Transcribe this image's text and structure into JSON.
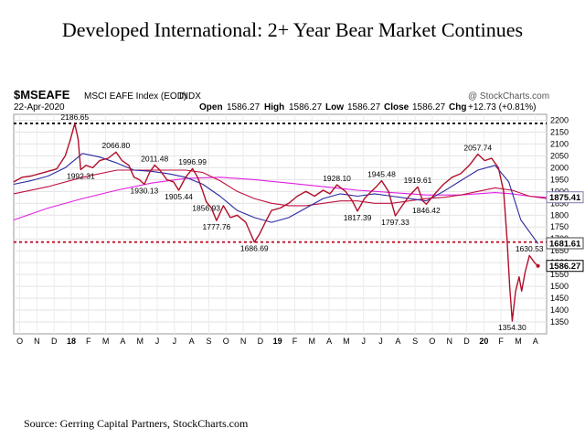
{
  "slide_title": "Developed International:  2+ Year Bear Market Continues",
  "source": "Source: Gerring Capital Partners, StockCharts.com",
  "chart_data": {
    "type": "line",
    "ticker": "$MSEAFE",
    "index_name": "MSCI EAFE Index (EOD)",
    "exchange": "INDX",
    "date": "22-Apr-2020",
    "watermark": "@ StockCharts.com",
    "quote": {
      "open_label": "Open",
      "open": "1586.27",
      "high_label": "High",
      "high": "1586.27",
      "low_label": "Low",
      "low": "1586.27",
      "close_label": "Close",
      "close": "1586.27",
      "chg_label": "Chg",
      "chg": "+12.73 (+0.81%)"
    },
    "x_labels": [
      {
        "t": 0,
        "label": "O",
        "bold": false
      },
      {
        "t": 1,
        "label": "N",
        "bold": false
      },
      {
        "t": 2,
        "label": "D",
        "bold": false
      },
      {
        "t": 3,
        "label": "18",
        "bold": true
      },
      {
        "t": 4,
        "label": "F",
        "bold": false
      },
      {
        "t": 5,
        "label": "M",
        "bold": false
      },
      {
        "t": 6,
        "label": "A",
        "bold": false
      },
      {
        "t": 7,
        "label": "M",
        "bold": false
      },
      {
        "t": 8,
        "label": "J",
        "bold": false
      },
      {
        "t": 9,
        "label": "J",
        "bold": false
      },
      {
        "t": 10,
        "label": "A",
        "bold": false
      },
      {
        "t": 11,
        "label": "S",
        "bold": false
      },
      {
        "t": 12,
        "label": "O",
        "bold": false
      },
      {
        "t": 13,
        "label": "N",
        "bold": false
      },
      {
        "t": 14,
        "label": "D",
        "bold": false
      },
      {
        "t": 15,
        "label": "19",
        "bold": true
      },
      {
        "t": 16,
        "label": "F",
        "bold": false
      },
      {
        "t": 17,
        "label": "M",
        "bold": false
      },
      {
        "t": 18,
        "label": "A",
        "bold": false
      },
      {
        "t": 19,
        "label": "M",
        "bold": false
      },
      {
        "t": 20,
        "label": "J",
        "bold": false
      },
      {
        "t": 21,
        "label": "J",
        "bold": false
      },
      {
        "t": 22,
        "label": "A",
        "bold": false
      },
      {
        "t": 23,
        "label": "S",
        "bold": false
      },
      {
        "t": 24,
        "label": "O",
        "bold": false
      },
      {
        "t": 25,
        "label": "N",
        "bold": false
      },
      {
        "t": 26,
        "label": "D",
        "bold": false
      },
      {
        "t": 27,
        "label": "20",
        "bold": true
      },
      {
        "t": 28,
        "label": "F",
        "bold": false
      },
      {
        "t": 29,
        "label": "M",
        "bold": false
      },
      {
        "t": 30,
        "label": "A",
        "bold": false
      }
    ],
    "y_ticks": [
      1350,
      1400,
      1450,
      1500,
      1550,
      1600,
      1650,
      1700,
      1750,
      1800,
      1850,
      1900,
      1950,
      2000,
      2050,
      2100,
      2150,
      2200
    ],
    "ylim": [
      1300,
      2225
    ],
    "xlim": [
      0,
      31
    ],
    "reference_lines": [
      2186.65,
      1686.69
    ],
    "value_boxes": [
      {
        "label": "1875.41",
        "y": 1875.41,
        "color": "#7a7ab0"
      },
      {
        "label": "1681.61",
        "y": 1681.61,
        "color": "#444444"
      },
      {
        "label": "1586.27",
        "y": 1586.27,
        "color": "#000000"
      }
    ],
    "annotations": [
      {
        "label": "2186.65",
        "t": 3.55,
        "v": 2186.65,
        "pos": "above"
      },
      {
        "label": "1992.31",
        "t": 3.9,
        "v": 1992.31,
        "pos": "below"
      },
      {
        "label": "2066.80",
        "t": 5.95,
        "v": 2066.8,
        "pos": "above"
      },
      {
        "label": "2011.48",
        "t": 8.2,
        "v": 2011.48,
        "pos": "above"
      },
      {
        "label": "1930.13",
        "t": 7.6,
        "v": 1930.13,
        "pos": "below"
      },
      {
        "label": "1996.99",
        "t": 10.4,
        "v": 1996.99,
        "pos": "above"
      },
      {
        "label": "1905.44",
        "t": 9.6,
        "v": 1905.44,
        "pos": "below"
      },
      {
        "label": "1856.93",
        "t": 11.2,
        "v": 1856.93,
        "pos": "below"
      },
      {
        "label": "1777.76",
        "t": 11.8,
        "v": 1777.76,
        "pos": "below"
      },
      {
        "label": "1686.69",
        "t": 14.0,
        "v": 1686.69,
        "pos": "below"
      },
      {
        "label": "1928.10",
        "t": 18.8,
        "v": 1928.1,
        "pos": "above"
      },
      {
        "label": "1945.48",
        "t": 21.4,
        "v": 1945.48,
        "pos": "above"
      },
      {
        "label": "1919.61",
        "t": 23.5,
        "v": 1919.61,
        "pos": "above"
      },
      {
        "label": "1817.39",
        "t": 20.0,
        "v": 1817.39,
        "pos": "below"
      },
      {
        "label": "1797.33",
        "t": 22.2,
        "v": 1797.33,
        "pos": "below"
      },
      {
        "label": "1846.42",
        "t": 24.0,
        "v": 1846.42,
        "pos": "below"
      },
      {
        "label": "2057.74",
        "t": 27.0,
        "v": 2057.74,
        "pos": "above"
      },
      {
        "label": "1630.53",
        "t": 30.0,
        "v": 1630.53,
        "pos": "above"
      },
      {
        "label": "1354.30",
        "t": 29.0,
        "v": 1354.3,
        "pos": "below"
      }
    ],
    "series": [
      {
        "name": "Price",
        "color": "#b0102a",
        "width": 1.4,
        "points": [
          [
            0,
            1940
          ],
          [
            0.5,
            1960
          ],
          [
            1,
            1965
          ],
          [
            1.5,
            1975
          ],
          [
            2,
            1985
          ],
          [
            2.5,
            1995
          ],
          [
            3,
            2050
          ],
          [
            3.3,
            2120
          ],
          [
            3.55,
            2186
          ],
          [
            3.75,
            2120
          ],
          [
            3.9,
            1992
          ],
          [
            4.2,
            2010
          ],
          [
            4.6,
            2000
          ],
          [
            5,
            2030
          ],
          [
            5.5,
            2040
          ],
          [
            5.95,
            2066
          ],
          [
            6.3,
            2030
          ],
          [
            6.7,
            2010
          ],
          [
            7,
            1960
          ],
          [
            7.3,
            1950
          ],
          [
            7.6,
            1930
          ],
          [
            7.9,
            1980
          ],
          [
            8.2,
            2011
          ],
          [
            8.5,
            1990
          ],
          [
            8.9,
            1950
          ],
          [
            9.3,
            1940
          ],
          [
            9.6,
            1905
          ],
          [
            10,
            1960
          ],
          [
            10.4,
            1996
          ],
          [
            10.7,
            1960
          ],
          [
            11,
            1900
          ],
          [
            11.2,
            1857
          ],
          [
            11.5,
            1830
          ],
          [
            11.8,
            1777
          ],
          [
            12.2,
            1840
          ],
          [
            12.6,
            1790
          ],
          [
            13,
            1800
          ],
          [
            13.5,
            1770
          ],
          [
            14.0,
            1686
          ],
          [
            14.3,
            1720
          ],
          [
            14.7,
            1780
          ],
          [
            15,
            1820
          ],
          [
            15.5,
            1830
          ],
          [
            16,
            1850
          ],
          [
            16.5,
            1880
          ],
          [
            17,
            1900
          ],
          [
            17.5,
            1880
          ],
          [
            18,
            1905
          ],
          [
            18.4,
            1890
          ],
          [
            18.8,
            1928
          ],
          [
            19.3,
            1900
          ],
          [
            19.7,
            1860
          ],
          [
            20,
            1817
          ],
          [
            20.4,
            1870
          ],
          [
            20.8,
            1900
          ],
          [
            21.1,
            1920
          ],
          [
            21.4,
            1945
          ],
          [
            21.8,
            1900
          ],
          [
            22.2,
            1797
          ],
          [
            22.6,
            1840
          ],
          [
            23,
            1880
          ],
          [
            23.5,
            1919
          ],
          [
            23.8,
            1860
          ],
          [
            24,
            1846
          ],
          [
            24.5,
            1890
          ],
          [
            25,
            1930
          ],
          [
            25.5,
            1960
          ],
          [
            26,
            1975
          ],
          [
            26.5,
            2010
          ],
          [
            27,
            2057
          ],
          [
            27.4,
            2030
          ],
          [
            27.8,
            2040
          ],
          [
            28.2,
            2000
          ],
          [
            28.5,
            1900
          ],
          [
            28.7,
            1700
          ],
          [
            28.85,
            1500
          ],
          [
            29,
            1354
          ],
          [
            29.2,
            1480
          ],
          [
            29.4,
            1540
          ],
          [
            29.55,
            1480
          ],
          [
            29.75,
            1560
          ],
          [
            30,
            1630
          ],
          [
            30.3,
            1600
          ],
          [
            30.5,
            1586
          ]
        ]
      },
      {
        "name": "MA50",
        "color": "#2a2aa0",
        "width": 1.1,
        "points": [
          [
            0,
            1930
          ],
          [
            1,
            1945
          ],
          [
            2,
            1965
          ],
          [
            3,
            2000
          ],
          [
            4,
            2060
          ],
          [
            5,
            2045
          ],
          [
            6,
            2020
          ],
          [
            7,
            1990
          ],
          [
            8,
            1985
          ],
          [
            9,
            1975
          ],
          [
            10,
            1960
          ],
          [
            11,
            1930
          ],
          [
            12,
            1880
          ],
          [
            13,
            1820
          ],
          [
            14,
            1790
          ],
          [
            15,
            1770
          ],
          [
            16,
            1790
          ],
          [
            17,
            1830
          ],
          [
            18,
            1870
          ],
          [
            19,
            1890
          ],
          [
            20,
            1880
          ],
          [
            21,
            1890
          ],
          [
            22,
            1880
          ],
          [
            23,
            1870
          ],
          [
            24,
            1860
          ],
          [
            25,
            1900
          ],
          [
            26,
            1945
          ],
          [
            27,
            1990
          ],
          [
            28,
            2010
          ],
          [
            28.8,
            1940
          ],
          [
            29.5,
            1780
          ],
          [
            30.5,
            1680
          ]
        ]
      },
      {
        "name": "MA150",
        "color": "#c01040",
        "width": 1.1,
        "points": [
          [
            0,
            1890
          ],
          [
            2,
            1920
          ],
          [
            4,
            1960
          ],
          [
            6,
            1990
          ],
          [
            8,
            1990
          ],
          [
            10,
            1990
          ],
          [
            11,
            1980
          ],
          [
            12,
            1945
          ],
          [
            13,
            1900
          ],
          [
            14,
            1870
          ],
          [
            15,
            1850
          ],
          [
            16,
            1840
          ],
          [
            17,
            1840
          ],
          [
            18,
            1850
          ],
          [
            19,
            1860
          ],
          [
            20,
            1860
          ],
          [
            21,
            1850
          ],
          [
            22,
            1850
          ],
          [
            23,
            1860
          ],
          [
            24,
            1870
          ],
          [
            25,
            1875
          ],
          [
            26,
            1885
          ],
          [
            27,
            1900
          ],
          [
            28,
            1915
          ],
          [
            29,
            1905
          ],
          [
            30,
            1880
          ],
          [
            31,
            1870
          ]
        ]
      },
      {
        "name": "MA200",
        "color": "#e020e0",
        "width": 1.1,
        "points": [
          [
            0,
            1780
          ],
          [
            2,
            1830
          ],
          [
            4,
            1870
          ],
          [
            6,
            1905
          ],
          [
            8,
            1935
          ],
          [
            10,
            1955
          ],
          [
            12,
            1960
          ],
          [
            14,
            1950
          ],
          [
            16,
            1935
          ],
          [
            18,
            1920
          ],
          [
            20,
            1905
          ],
          [
            22,
            1895
          ],
          [
            24,
            1885
          ],
          [
            26,
            1885
          ],
          [
            28,
            1895
          ],
          [
            29,
            1890
          ],
          [
            30,
            1880
          ],
          [
            31,
            1875
          ]
        ]
      }
    ]
  }
}
